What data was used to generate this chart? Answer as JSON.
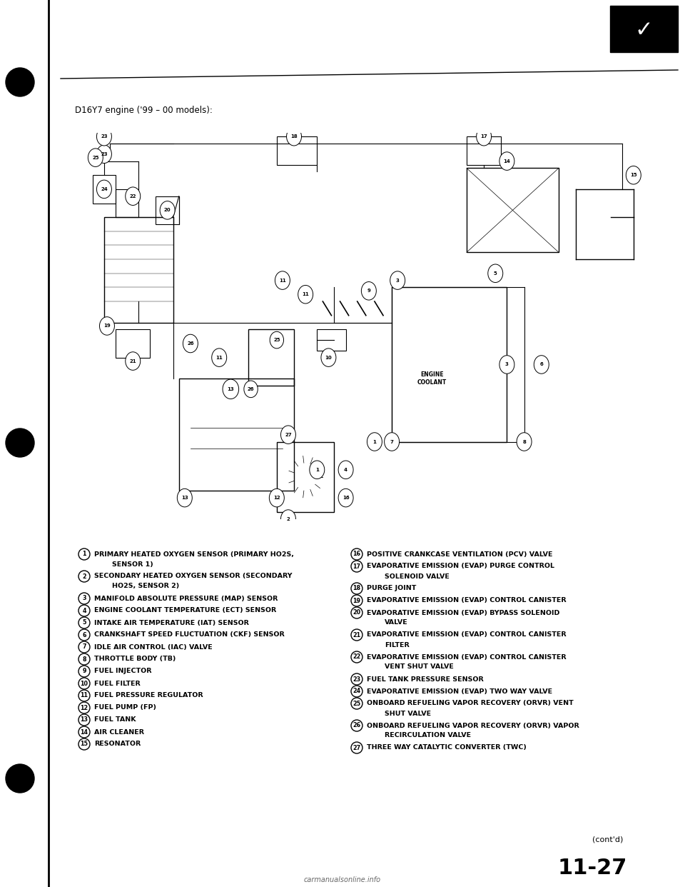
{
  "title": "D16Y7 engine ('99 – 00 models):",
  "bg_color": "#ffffff",
  "left_items": [
    {
      "num": "1",
      "text": "PRIMARY HEATED OXYGEN SENSOR (PRIMARY HO2S,",
      "cont": "SENSOR 1)"
    },
    {
      "num": "2",
      "text": "SECONDARY HEATED OXYGEN SENSOR (SECONDARY",
      "cont": "HO2S, SENSOR 2)"
    },
    {
      "num": "3",
      "text": "MANIFOLD ABSOLUTE PRESSURE (MAP) SENSOR",
      "cont": ""
    },
    {
      "num": "4",
      "text": "ENGINE COOLANT TEMPERATURE (ECT) SENSOR",
      "cont": ""
    },
    {
      "num": "5",
      "text": "INTAKE AIR TEMPERATURE (IAT) SENSOR",
      "cont": ""
    },
    {
      "num": "6",
      "text": "CRANKSHAFT SPEED FLUCTUATION (CKF) SENSOR",
      "cont": ""
    },
    {
      "num": "7",
      "text": "IDLE AIR CONTROL (IAC) VALVE",
      "cont": ""
    },
    {
      "num": "8",
      "text": "THROTTLE BODY (TB)",
      "cont": ""
    },
    {
      "num": "9",
      "text": "FUEL INJECTOR",
      "cont": ""
    },
    {
      "num": "10",
      "text": "FUEL FILTER",
      "cont": ""
    },
    {
      "num": "11",
      "text": "FUEL PRESSURE REGULATOR",
      "cont": ""
    },
    {
      "num": "12",
      "text": "FUEL PUMP (FP)",
      "cont": ""
    },
    {
      "num": "13",
      "text": "FUEL TANK",
      "cont": ""
    },
    {
      "num": "14",
      "text": "AIR CLEANER",
      "cont": ""
    },
    {
      "num": "15",
      "text": "RESONATOR",
      "cont": ""
    }
  ],
  "right_items": [
    {
      "num": "16",
      "text": "POSITIVE CRANKCASE VENTILATION (PCV) VALVE",
      "cont": ""
    },
    {
      "num": "17",
      "text": "EVAPORATIVE EMISSION (EVAP) PURGE CONTROL",
      "cont": "SOLENOID VALVE"
    },
    {
      "num": "18",
      "text": "PURGE JOINT",
      "cont": ""
    },
    {
      "num": "19",
      "text": "EVAPORATIVE EMISSION (EVAP) CONTROL CANISTER",
      "cont": ""
    },
    {
      "num": "20",
      "text": "EVAPORATIVE EMISSION (EVAP) BYPASS SOLENOID",
      "cont": "VALVE"
    },
    {
      "num": "21",
      "text": "EVAPORATIVE EMISSION (EVAP) CONTROL CANISTER",
      "cont": "FILTER"
    },
    {
      "num": "22",
      "text": "EVAPORATIVE EMISSION (EVAP) CONTROL CANISTER",
      "cont": "VENT SHUT VALVE"
    },
    {
      "num": "23",
      "text": "FUEL TANK PRESSURE SENSOR",
      "cont": ""
    },
    {
      "num": "24",
      "text": "EVAPORATIVE EMISSION (EVAP) TWO WAY VALVE",
      "cont": ""
    },
    {
      "num": "25",
      "text": "ONBOARD REFUELING VAPOR RECOVERY (ORVR) VENT",
      "cont": "SHUT VALVE"
    },
    {
      "num": "26",
      "text": "ONBOARD REFUELING VAPOR RECOVERY (ORVR) VAPOR",
      "cont": "RECIRCULATION VALVE"
    },
    {
      "num": "27",
      "text": "THREE WAY CATALYTIC CONVERTER (TWC)",
      "cont": ""
    }
  ],
  "footer_text": "(cont'd)",
  "page_number": "11-27",
  "watermark": "carmanualsonline.info"
}
